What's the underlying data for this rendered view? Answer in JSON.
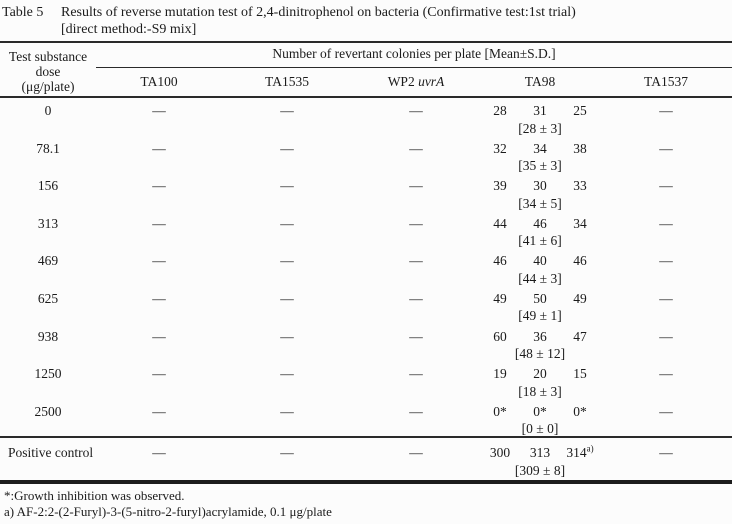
{
  "title": {
    "label": "Table 5",
    "line1": "Results of reverse mutation test of 2,4-dinitrophenol on bacteria (Confirmative test:1st trial)",
    "line2": "[direct method:-S9 mix]"
  },
  "table": {
    "col1_header": [
      "Test substance",
      "dose",
      "(μg/plate)"
    ],
    "span_header": "Number of revertant colonies per plate [Mean±S.D.]",
    "strains": [
      {
        "key": "ta100",
        "label": "TA100"
      },
      {
        "key": "ta1535",
        "label": "TA1535"
      },
      {
        "key": "wp2",
        "label": "WP2",
        "italic": "uvrA"
      },
      {
        "key": "ta98",
        "label": "TA98"
      },
      {
        "key": "ta1537",
        "label": "TA1537"
      }
    ],
    "dash": "—",
    "rows": [
      {
        "dose": "0",
        "ta100": "—",
        "ta1535": "—",
        "wp2": "—",
        "ta98": [
          "28",
          "31",
          "25"
        ],
        "ta98_mean": "[28 ± 3]",
        "ta1537": "—"
      },
      {
        "dose": "78.1",
        "ta100": "—",
        "ta1535": "—",
        "wp2": "—",
        "ta98": [
          "32",
          "34",
          "38"
        ],
        "ta98_mean": "[35 ± 3]",
        "ta1537": "—"
      },
      {
        "dose": "156",
        "ta100": "—",
        "ta1535": "—",
        "wp2": "—",
        "ta98": [
          "39",
          "30",
          "33"
        ],
        "ta98_mean": "[34 ± 5]",
        "ta1537": "—"
      },
      {
        "dose": "313",
        "ta100": "—",
        "ta1535": "—",
        "wp2": "—",
        "ta98": [
          "44",
          "46",
          "34"
        ],
        "ta98_mean": "[41 ± 6]",
        "ta1537": "—"
      },
      {
        "dose": "469",
        "ta100": "—",
        "ta1535": "—",
        "wp2": "—",
        "ta98": [
          "46",
          "40",
          "46"
        ],
        "ta98_mean": "[44 ± 3]",
        "ta1537": "—"
      },
      {
        "dose": "625",
        "ta100": "—",
        "ta1535": "—",
        "wp2": "—",
        "ta98": [
          "49",
          "50",
          "49"
        ],
        "ta98_mean": "[49 ± 1]",
        "ta1537": "—"
      },
      {
        "dose": "938",
        "ta100": "—",
        "ta1535": "—",
        "wp2": "—",
        "ta98": [
          "60",
          "36",
          "47"
        ],
        "ta98_mean": "[48 ± 12]",
        "ta1537": "—"
      },
      {
        "dose": "1250",
        "ta100": "—",
        "ta1535": "—",
        "wp2": "—",
        "ta98": [
          "19",
          "20",
          "15"
        ],
        "ta98_mean": "[18 ± 3]",
        "ta1537": "—"
      },
      {
        "dose": "2500",
        "ta100": "—",
        "ta1535": "—",
        "wp2": "—",
        "ta98": [
          "0*",
          "0*",
          "0*"
        ],
        "ta98_mean": "[0 ± 0]",
        "ta1537": "—"
      }
    ],
    "positive_control": {
      "label": "Positive control",
      "ta100": "—",
      "ta1535": "—",
      "wp2": "—",
      "ta98": [
        "300",
        "313",
        "314"
      ],
      "ta98_last_sup": "a)",
      "ta98_mean": "[309 ± 8]",
      "ta1537": "—"
    }
  },
  "footnotes": [
    "*:Growth inhibition was observed.",
    "a) AF-2:2-(2-Furyl)-3-(5-nitro-2-furyl)acrylamide, 0.1 μg/plate"
  ]
}
